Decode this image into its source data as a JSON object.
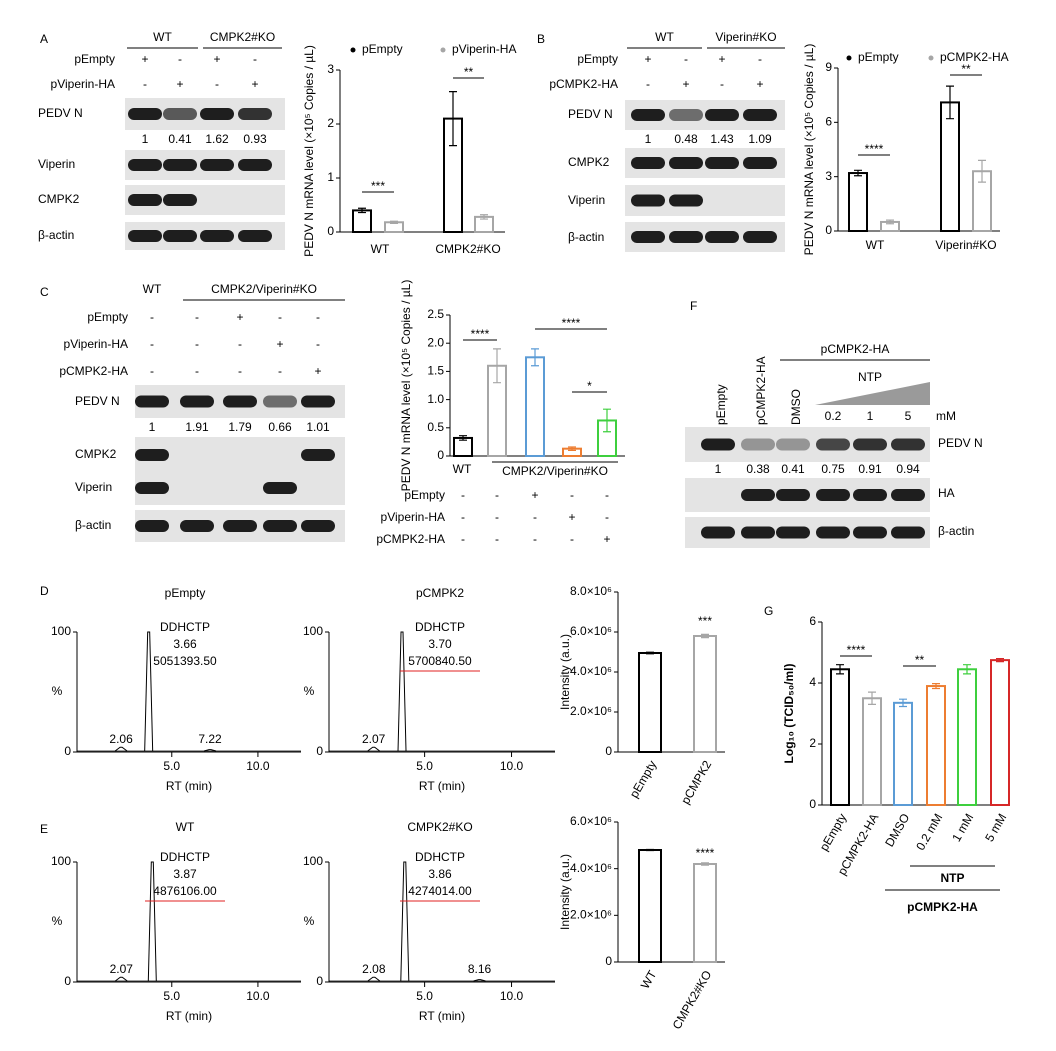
{
  "panels": [
    "A",
    "B",
    "C",
    "D",
    "E",
    "F",
    "G"
  ],
  "chart_data": [
    {
      "type": "bar",
      "ylabel": "PEDV N mRNA level (×10⁵ Copies / µL)",
      "ylim": [
        0,
        3
      ],
      "yticks": [
        0,
        1,
        2,
        3
      ],
      "categories": [
        "WT",
        "CMPK2#KO"
      ],
      "series": [
        {
          "name": "pEmpty",
          "color": "#000000",
          "values": [
            0.4,
            2.1
          ],
          "errors": [
            0.04,
            0.5
          ]
        },
        {
          "name": "pViperin-HA",
          "color": "#a6a6a6",
          "values": [
            0.18,
            0.28
          ],
          "errors": [
            0.02,
            0.04
          ]
        }
      ],
      "annotations": [
        "***",
        "**"
      ]
    },
    {
      "type": "bar",
      "ylabel": "PEDV N mRNA level (×10⁵ Copies / µL)",
      "ylim": [
        0,
        9
      ],
      "yticks": [
        0,
        3,
        6,
        9
      ],
      "categories": [
        "WT",
        "Viperin#KO"
      ],
      "series": [
        {
          "name": "pEmpty",
          "color": "#000000",
          "values": [
            3.2,
            7.1
          ],
          "errors": [
            0.15,
            0.9
          ]
        },
        {
          "name": "pCMPK2-HA",
          "color": "#a6a6a6",
          "values": [
            0.5,
            3.3
          ],
          "errors": [
            0.1,
            0.6
          ]
        }
      ],
      "annotations": [
        "****",
        "**"
      ]
    },
    {
      "type": "bar",
      "ylabel": "PEDV N mRNA level (×10⁵ Copies / µL)",
      "ylim": [
        0,
        2.5
      ],
      "yticks": [
        0,
        0.5,
        {
          "value": 1,
          "label": "1.0"
        },
        1.5,
        {
          "value": 2,
          "label": "2.0"
        },
        2.5
      ],
      "categories": [
        "WT",
        null,
        null,
        null,
        null
      ],
      "group_labels": [
        "CMPK2/Viperin#KO"
      ],
      "values": [
        0.32,
        1.6,
        1.75,
        0.13,
        0.63
      ],
      "errors": [
        0.04,
        0.3,
        0.15,
        0.03,
        0.2
      ],
      "colors": [
        "#000000",
        "#a6a6a6",
        "#5b9bd5",
        "#ed7d31",
        "#3ecf3e"
      ],
      "conditions": [
        {
          "label": "pEmpty",
          "marks": [
            "-",
            "-",
            "+",
            "-",
            "-"
          ]
        },
        {
          "label": "pViperin-HA",
          "marks": [
            "-",
            "-",
            "-",
            "+",
            "-"
          ]
        },
        {
          "label": "pCMPK2-HA",
          "marks": [
            "-",
            "-",
            "-",
            "-",
            "+"
          ]
        }
      ],
      "annotations": [
        "****",
        "****",
        "*"
      ]
    },
    {
      "type": "chromatogram",
      "title": "pEmpty",
      "xlabel": "RT (min)",
      "ylabel": "%",
      "xlim": [
        -0.5,
        12.5
      ],
      "xticks": [
        {
          "value": 5,
          "label": "5.0"
        },
        {
          "value": 10,
          "label": "10.0"
        }
      ],
      "ylim": [
        0,
        100
      ],
      "yticks": [
        0,
        100
      ],
      "peaks": [
        {
          "rt": 3.66,
          "height": 100,
          "name": "DDHCTP",
          "area": {
            "value": 5051393.5,
            "label": "5051393.50"
          }
        },
        {
          "rt": 2.06,
          "height": 4
        },
        {
          "rt": 7.22,
          "height": 2
        }
      ]
    },
    {
      "type": "chromatogram",
      "title": "pCMPK2",
      "xlabel": "RT (min)",
      "ylabel": "%",
      "xlim": [
        -0.5,
        12.5
      ],
      "xticks": [
        {
          "value": 5,
          "label": "5.0"
        },
        {
          "value": 10,
          "label": "10.0"
        }
      ],
      "ylim": [
        0,
        100
      ],
      "yticks": [
        0,
        100
      ],
      "underline_color": "#e02020",
      "peaks": [
        {
          "rt": {
            "value": 3.7,
            "label": "3.70"
          },
          "height": 100,
          "name": "DDHCTP",
          "area": {
            "value": 5700840.5,
            "label": "5700840.50"
          }
        },
        {
          "rt": 2.07,
          "height": 4
        }
      ]
    },
    {
      "type": "bar",
      "ylabel": "Intensity (a.u.)",
      "ylim": [
        0,
        8000000
      ],
      "yticks": [
        0,
        {
          "value": 2000000,
          "label": "2.0×10⁶"
        },
        {
          "value": 4000000,
          "label": "4.0×10⁶"
        },
        {
          "value": 6000000,
          "label": "6.0×10⁶"
        },
        {
          "value": 8000000,
          "label": "8.0×10⁶"
        }
      ],
      "categories": [
        "pEmpty",
        "pCMPK2"
      ],
      "values": [
        4950000,
        5800000
      ],
      "errors": [
        40000,
        80000
      ],
      "colors": [
        "#000000",
        "#a6a6a6"
      ],
      "annotations": [
        "***"
      ]
    },
    {
      "type": "chromatogram",
      "title": "WT",
      "xlabel": "RT (min)",
      "ylabel": "%",
      "xlim": [
        -0.5,
        12.5
      ],
      "xticks": [
        {
          "value": 5,
          "label": "5.0"
        },
        {
          "value": 10,
          "label": "10.0"
        }
      ],
      "ylim": [
        0,
        100
      ],
      "yticks": [
        0,
        100
      ],
      "underline_color": "#e02020",
      "peaks": [
        {
          "rt": 3.87,
          "height": 100,
          "name": "DDHCTP",
          "area": {
            "value": 4876106,
            "label": "4876106.00"
          }
        },
        {
          "rt": 2.07,
          "height": 4
        }
      ]
    },
    {
      "type": "chromatogram",
      "title": "CMPK2#KO",
      "xlabel": "RT (min)",
      "ylabel": "%",
      "xlim": [
        -0.5,
        12.5
      ],
      "xticks": [
        {
          "value": 5,
          "label": "5.0"
        },
        {
          "value": 10,
          "label": "10.0"
        }
      ],
      "ylim": [
        0,
        100
      ],
      "yticks": [
        0,
        100
      ],
      "underline_color": "#e02020",
      "peaks": [
        {
          "rt": 3.86,
          "height": 100,
          "name": "DDHCTP",
          "area": {
            "value": 4274014,
            "label": "4274014.00"
          }
        },
        {
          "rt": 2.08,
          "height": 4
        },
        {
          "rt": 8.16,
          "height": 2
        }
      ]
    },
    {
      "type": "bar",
      "ylabel": "Intensity (a.u.)",
      "ylim": [
        0,
        6000000
      ],
      "yticks": [
        0,
        {
          "value": 2000000,
          "label": "2.0×10⁶"
        },
        {
          "value": 4000000,
          "label": "4.0×10⁶"
        },
        {
          "value": 6000000,
          "label": "6.0×10⁶"
        }
      ],
      "categories": [
        "WT",
        "CMPK2#KO"
      ],
      "values": [
        4800000,
        4200000
      ],
      "errors": [
        20000,
        50000
      ],
      "colors": [
        "#000000",
        "#a6a6a6"
      ],
      "annotations": [
        "****"
      ]
    },
    {
      "type": "bar",
      "ylabel": "Log₁₀ (TCID₅₀/ml)",
      "ylim": [
        0,
        6
      ],
      "yticks": [
        0,
        2,
        4,
        6
      ],
      "categories": [
        "pEmpty",
        "pCMPK2-HA",
        "DMSO",
        "0.2 mM",
        "1 mM",
        "5 mM"
      ],
      "values": [
        4.45,
        3.5,
        3.35,
        3.9,
        4.45,
        4.75
      ],
      "errors": [
        0.15,
        0.2,
        0.12,
        0.08,
        0.15,
        0.05
      ],
      "colors": [
        "#000000",
        "#a6a6a6",
        "#5b9bd5",
        "#ed7d31",
        "#3ecf3e",
        "#d62728"
      ],
      "group_labels": [
        "NTP",
        "pCMPK2-HA"
      ],
      "annotations": [
        "****",
        "**"
      ]
    }
  ],
  "blots": [
    {
      "groups": [
        "WT",
        "CMPK2#KO"
      ],
      "conditions": [
        {
          "label": "pEmpty",
          "marks": [
            "+",
            "-",
            "+",
            "-"
          ]
        },
        {
          "label": "pViperin-HA",
          "marks": [
            "-",
            "+",
            "-",
            "+"
          ]
        }
      ],
      "rows": [
        "PEDV N",
        "Viperin",
        "CMPK2",
        "β-actin"
      ],
      "quant": [
        1,
        0.41,
        1.62,
        0.93
      ]
    },
    {
      "groups": [
        "WT",
        "Viperin#KO"
      ],
      "conditions": [
        {
          "label": "pEmpty",
          "marks": [
            "+",
            "-",
            "+",
            "-"
          ]
        },
        {
          "label": "pCMPK2-HA",
          "marks": [
            "-",
            "+",
            "-",
            "+"
          ]
        }
      ],
      "rows": [
        "PEDV N",
        "CMPK2",
        "Viperin",
        "β-actin"
      ],
      "quant": [
        1,
        0.48,
        1.43,
        1.09
      ]
    },
    {
      "groups": [
        "WT",
        "CMPK2/Viperin#KO"
      ],
      "conditions": [
        {
          "label": "pEmpty",
          "marks": [
            "-",
            "-",
            "+",
            "-",
            "-"
          ]
        },
        {
          "label": "pViperin-HA",
          "marks": [
            "-",
            "-",
            "-",
            "+",
            "-"
          ]
        },
        {
          "label": "pCMPK2-HA",
          "marks": [
            "-",
            "-",
            "-",
            "-",
            "+"
          ]
        }
      ],
      "rows": [
        "PEDV N",
        "CMPK2",
        "Viperin",
        "β-actin"
      ],
      "quant": [
        1,
        1.91,
        1.79,
        0.66,
        1.01
      ]
    },
    {
      "lanes": [
        "pEmpty",
        "pCMPK2-HA",
        "DMSO",
        "0.2",
        "1",
        "5"
      ],
      "groups": [
        "pCMPK2-HA",
        "NTP"
      ],
      "unit": "mM",
      "rows": [
        "PEDV N",
        "HA",
        "β-actin"
      ],
      "quant": [
        1,
        0.38,
        0.41,
        0.75,
        0.91,
        0.94
      ]
    }
  ]
}
